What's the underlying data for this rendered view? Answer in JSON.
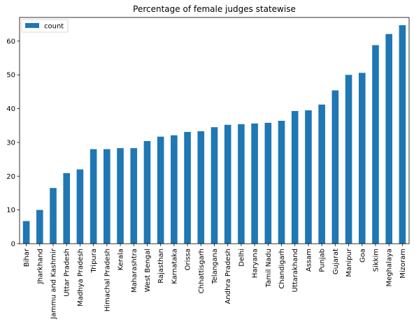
{
  "chart_data": {
    "type": "bar",
    "title": "Percentage of female judges statewise",
    "xlabel": "",
    "ylabel": "",
    "ylim": [
      0,
      67
    ],
    "yticks": [
      0,
      10,
      20,
      30,
      40,
      50,
      60
    ],
    "grid": false,
    "legend_position": "top-left",
    "categories": [
      "Bihar",
      "Jharkhand",
      "Jammu and Kashmir",
      "Uttar Pradesh",
      "Madhya Pradesh",
      "Tripura",
      "Himachal Pradesh",
      "Kerala",
      "Maharashtra",
      "West Bengal",
      "Rajasthan",
      "Karnataka",
      "Orissa",
      "Chhattisgarh",
      "Telangana",
      "Andhra Pradesh",
      "Delhi",
      "Haryana",
      "Tamil Nadu",
      "Chandigarh",
      "Uttarakhand",
      "Assam",
      "Punjab",
      "Gujarat",
      "Manipur",
      "Goa",
      "Sikkim",
      "Meghalaya",
      "Mizoram"
    ],
    "series": [
      {
        "name": "count",
        "color": "#1f77b4",
        "values": [
          6.7,
          10.0,
          16.5,
          20.9,
          22.0,
          28.0,
          28.0,
          28.3,
          28.3,
          30.4,
          31.7,
          32.1,
          33.1,
          33.3,
          34.5,
          35.2,
          35.4,
          35.6,
          35.8,
          36.4,
          39.3,
          39.5,
          41.2,
          45.4,
          50.0,
          50.6,
          58.8,
          62.1,
          64.7
        ]
      }
    ]
  }
}
